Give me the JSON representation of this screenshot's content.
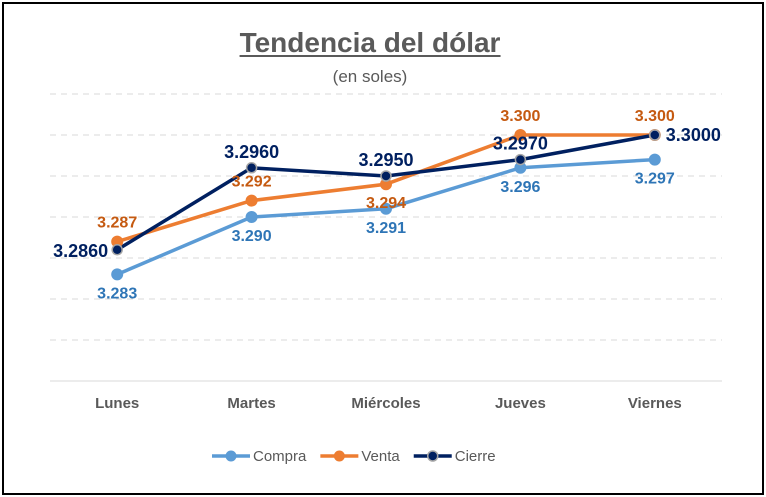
{
  "chart_data": {
    "type": "line",
    "title": "Tendencia del dólar",
    "subtitle": "(en soles)",
    "categories": [
      "Lunes",
      "Martes",
      "Miércoles",
      "Jueves",
      "Viernes"
    ],
    "ylim": [
      3.27,
      3.305
    ],
    "grid": true,
    "legend_position": "bottom",
    "series": [
      {
        "name": "Compra",
        "color": "#5b9bd5",
        "values": [
          3.283,
          3.29,
          3.291,
          3.296,
          3.297
        ],
        "labels": [
          "3.283",
          "3.290",
          "3.291",
          "3.296",
          "3.297"
        ],
        "label_color": "#2e75b6",
        "label_position": [
          "below",
          "below",
          "below",
          "below",
          "below"
        ]
      },
      {
        "name": "Venta",
        "color": "#ed7d31",
        "values": [
          3.287,
          3.292,
          3.294,
          3.3,
          3.3
        ],
        "labels": [
          "3.287",
          "3.292",
          "3.294",
          "3.300",
          "3.300"
        ],
        "label_color": "#c55a11",
        "label_position": [
          "above",
          "above",
          "below",
          "above",
          "above"
        ]
      },
      {
        "name": "Cierre",
        "color": "#002060",
        "values": [
          3.286,
          3.296,
          3.295,
          3.297,
          3.3
        ],
        "labels": [
          "3.2860",
          "3.2960",
          "3.2950",
          "3.2970",
          "3.3000"
        ],
        "label_color": "#002060",
        "label_position": [
          "left",
          "above",
          "above",
          "above",
          "right"
        ]
      }
    ]
  }
}
